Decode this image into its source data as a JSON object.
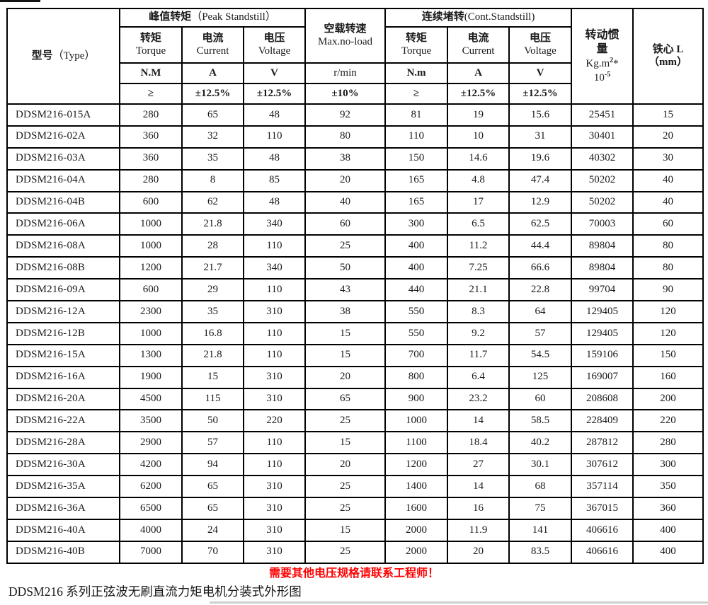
{
  "colors": {
    "border": "#000000",
    "text": "#1a1a1a",
    "notice": "#ff0000"
  },
  "header": {
    "type": {
      "cn": "型号",
      "en": "（Type）"
    },
    "peak_group": {
      "cn": "峰值转矩",
      "en": "（Peak Standstill）"
    },
    "cont_group": {
      "cn": "连续堵转",
      "en": "(Cont.Standstill)"
    },
    "noload": {
      "cn": "空载转速",
      "en": "Max.no-load",
      "unit": "r/min",
      "tol": "±10%"
    },
    "sub_cols": [
      {
        "cn": "转矩",
        "en": "Torque",
        "unit": "N.M",
        "tol": "≥"
      },
      {
        "cn": "电流",
        "en": "Current",
        "unit": "A",
        "tol": "±12.5%"
      },
      {
        "cn": "电压",
        "en": "Voltage",
        "unit": "V",
        "tol": "±12.5%"
      },
      {
        "cn": "转矩",
        "en": "Torque",
        "unit": "N.m",
        "tol": "≥"
      },
      {
        "cn": "电流",
        "en": "Current",
        "unit": "A",
        "tol": "±12.5%"
      },
      {
        "cn": "电压",
        "en": "Voltage",
        "unit": "V",
        "tol": "±12.5%"
      }
    ],
    "inertia": {
      "cn": "转动惯量",
      "unit_base": "Kg.m",
      "unit_sup": "2",
      "unit_star": "*",
      "exp_base": "10",
      "exp_sup": "-5"
    },
    "core": {
      "cn": "铁心 L",
      "unit": "（mm）"
    }
  },
  "rows": [
    [
      "DDSM216-015A",
      "280",
      "65",
      "48",
      "92",
      "81",
      "19",
      "15.6",
      "25451",
      "15"
    ],
    [
      "DDSM216-02A",
      "360",
      "32",
      "110",
      "80",
      "110",
      "10",
      "31",
      "30401",
      "20"
    ],
    [
      "DDSM216-03A",
      "360",
      "35",
      "48",
      "38",
      "150",
      "14.6",
      "19.6",
      "40302",
      "30"
    ],
    [
      "DDSM216-04A",
      "280",
      "8",
      "85",
      "20",
      "165",
      "4.8",
      "47.4",
      "50202",
      "40"
    ],
    [
      "DDSM216-04B",
      "600",
      "62",
      "48",
      "40",
      "165",
      "17",
      "12.9",
      "50202",
      "40"
    ],
    [
      "DDSM216-06A",
      "1000",
      "21.8",
      "340",
      "60",
      "300",
      "6.5",
      "62.5",
      "70003",
      "60"
    ],
    [
      "DDSM216-08A",
      "1000",
      "28",
      "110",
      "25",
      "400",
      "11.2",
      "44.4",
      "89804",
      "80"
    ],
    [
      "DDSM216-08B",
      "1200",
      "21.7",
      "340",
      "50",
      "400",
      "7.25",
      "66.6",
      "89804",
      "80"
    ],
    [
      "DDSM216-09A",
      "600",
      "29",
      "110",
      "43",
      "440",
      "21.1",
      "22.8",
      "99704",
      "90"
    ],
    [
      "DDSM216-12A",
      "2300",
      "35",
      "310",
      "38",
      "550",
      "8.3",
      "64",
      "129405",
      "120"
    ],
    [
      "DDSM216-12B",
      "1000",
      "16.8",
      "110",
      "15",
      "550",
      "9.2",
      "57",
      "129405",
      "120"
    ],
    [
      "DDSM216-15A",
      "1300",
      "21.8",
      "110",
      "15",
      "700",
      "11.7",
      "54.5",
      "159106",
      "150"
    ],
    [
      "DDSM216-16A",
      "1900",
      "15",
      "310",
      "20",
      "800",
      "6.4",
      "125",
      "169007",
      "160"
    ],
    [
      "DDSM216-20A",
      "4500",
      "115",
      "310",
      "65",
      "900",
      "23.2",
      "60",
      "208608",
      "200"
    ],
    [
      "DDSM216-22A",
      "3500",
      "50",
      "220",
      "25",
      "1000",
      "14",
      "58.5",
      "228409",
      "220"
    ],
    [
      "DDSM216-28A",
      "2900",
      "57",
      "110",
      "15",
      "1100",
      "18.4",
      "40.2",
      "287812",
      "280"
    ],
    [
      "DDSM216-30A",
      "4200",
      "94",
      "110",
      "20",
      "1200",
      "27",
      "30.1",
      "307612",
      "300"
    ],
    [
      "DDSM216-35A",
      "6200",
      "65",
      "310",
      "25",
      "1400",
      "14",
      "68",
      "357114",
      "350"
    ],
    [
      "DDSM216-36A",
      "6500",
      "65",
      "310",
      "25",
      "1600",
      "16",
      "75",
      "367015",
      "360"
    ],
    [
      "DDSM216-40A",
      "4000",
      "24",
      "310",
      "15",
      "2000",
      "11.9",
      "141",
      "406616",
      "400"
    ],
    [
      "DDSM216-40B",
      "7000",
      "70",
      "310",
      "25",
      "2000",
      "20",
      "83.5",
      "406616",
      "400"
    ]
  ],
  "footer": {
    "notice": "需要其他电压规格请联系工程师！",
    "caption": "DDSM216 系列正弦波无刷直流力矩电机分装式外形图"
  }
}
